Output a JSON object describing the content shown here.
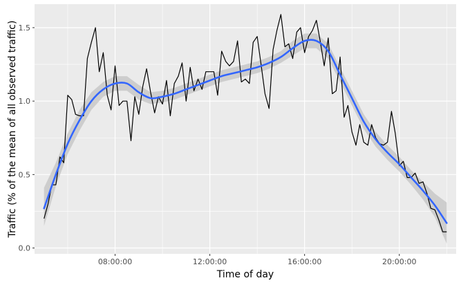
{
  "chart_data": {
    "type": "line",
    "title": "",
    "xlabel": "Time of day",
    "ylabel": "Traffic (% of the mean of all observed traffic)",
    "x_unit": "hour of day",
    "xlim": [
      4.6,
      22.4
    ],
    "ylim": [
      -0.04,
      1.66
    ],
    "x_ticks": [
      {
        "value": 8,
        "label": "08:00:00"
      },
      {
        "value": 12,
        "label": "12:00:00"
      },
      {
        "value": 16,
        "label": "16:00:00"
      },
      {
        "value": 20,
        "label": "20:00:00"
      }
    ],
    "y_ticks": [
      {
        "value": 0,
        "label": "0.0"
      },
      {
        "value": 0.5,
        "label": "0.5"
      },
      {
        "value": 1.0,
        "label": "1.0"
      },
      {
        "value": 1.5,
        "label": "1.5"
      }
    ],
    "grid": true,
    "legend": "none",
    "colors": {
      "panel": "#EBEBEB",
      "grid": "#FFFFFF",
      "observed": "#000000",
      "smooth": "#3366FF",
      "ribbon": "#C8C8C8"
    },
    "observed": {
      "x": [
        5.0,
        5.17,
        5.33,
        5.5,
        5.67,
        5.83,
        6.0,
        6.17,
        6.33,
        6.5,
        6.67,
        6.83,
        7.0,
        7.17,
        7.33,
        7.5,
        7.67,
        7.83,
        8.0,
        8.17,
        8.33,
        8.5,
        8.67,
        8.83,
        9.0,
        9.17,
        9.33,
        9.5,
        9.67,
        9.83,
        10.0,
        10.17,
        10.33,
        10.5,
        10.67,
        10.83,
        11.0,
        11.17,
        11.33,
        11.5,
        11.67,
        11.83,
        12.0,
        12.17,
        12.33,
        12.5,
        12.67,
        12.83,
        13.0,
        13.17,
        13.33,
        13.5,
        13.67,
        13.83,
        14.0,
        14.17,
        14.33,
        14.5,
        14.67,
        14.83,
        15.0,
        15.17,
        15.33,
        15.5,
        15.67,
        15.83,
        16.0,
        16.17,
        16.33,
        16.5,
        16.67,
        16.83,
        17.0,
        17.17,
        17.33,
        17.5,
        17.67,
        17.83,
        18.0,
        18.17,
        18.33,
        18.5,
        18.67,
        18.83,
        19.0,
        19.17,
        19.33,
        19.5,
        19.67,
        19.83,
        20.0,
        20.17,
        20.33,
        20.5,
        20.67,
        20.83,
        21.0,
        21.17,
        21.33,
        21.5,
        21.67,
        21.83,
        22.0
      ],
      "y": [
        0.2,
        0.3,
        0.43,
        0.43,
        0.62,
        0.58,
        1.04,
        1.01,
        0.91,
        0.9,
        0.9,
        1.29,
        1.4,
        1.5,
        1.2,
        1.33,
        1.04,
        0.94,
        1.24,
        0.97,
        1.0,
        1.0,
        0.73,
        1.03,
        0.91,
        1.1,
        1.22,
        1.06,
        0.92,
        1.03,
        0.98,
        1.14,
        0.9,
        1.12,
        1.17,
        1.26,
        1.0,
        1.23,
        1.07,
        1.15,
        1.08,
        1.2,
        1.2,
        1.2,
        1.04,
        1.34,
        1.27,
        1.24,
        1.27,
        1.41,
        1.13,
        1.15,
        1.12,
        1.4,
        1.44,
        1.24,
        1.05,
        0.95,
        1.35,
        1.48,
        1.59,
        1.37,
        1.39,
        1.29,
        1.47,
        1.5,
        1.33,
        1.44,
        1.48,
        1.55,
        1.4,
        1.24,
        1.43,
        1.05,
        1.07,
        1.3,
        0.89,
        0.97,
        0.79,
        0.7,
        0.84,
        0.72,
        0.7,
        0.84,
        0.75,
        0.71,
        0.7,
        0.72,
        0.93,
        0.78,
        0.56,
        0.59,
        0.48,
        0.48,
        0.51,
        0.44,
        0.45,
        0.37,
        0.27,
        0.26,
        0.19,
        0.11,
        0.11
      ]
    },
    "smooth": {
      "x": [
        5.0,
        5.5,
        6.0,
        6.5,
        7.0,
        7.5,
        8.0,
        8.5,
        9.0,
        9.5,
        10.0,
        10.5,
        11.0,
        11.5,
        12.0,
        12.5,
        13.0,
        13.5,
        14.0,
        14.5,
        15.0,
        15.5,
        16.0,
        16.5,
        17.0,
        17.5,
        18.0,
        18.5,
        19.0,
        19.5,
        20.0,
        20.5,
        21.0,
        21.5,
        22.0
      ],
      "y": [
        0.27,
        0.5,
        0.71,
        0.87,
        1.0,
        1.08,
        1.12,
        1.12,
        1.06,
        1.02,
        1.03,
        1.05,
        1.08,
        1.11,
        1.14,
        1.17,
        1.19,
        1.21,
        1.23,
        1.26,
        1.3,
        1.36,
        1.41,
        1.41,
        1.34,
        1.18,
        1.02,
        0.86,
        0.74,
        0.65,
        0.57,
        0.48,
        0.39,
        0.29,
        0.17
      ],
      "ci_lower": [
        0.15,
        0.42,
        0.64,
        0.8,
        0.94,
        1.03,
        1.07,
        1.07,
        1.01,
        0.98,
        0.99,
        1.01,
        1.04,
        1.07,
        1.1,
        1.13,
        1.15,
        1.17,
        1.19,
        1.22,
        1.26,
        1.31,
        1.36,
        1.36,
        1.29,
        1.13,
        0.97,
        0.81,
        0.69,
        0.6,
        0.52,
        0.43,
        0.33,
        0.21,
        0.03
      ],
      "ci_upper": [
        0.41,
        0.58,
        0.78,
        0.94,
        1.06,
        1.13,
        1.17,
        1.17,
        1.11,
        1.06,
        1.07,
        1.09,
        1.12,
        1.15,
        1.18,
        1.21,
        1.23,
        1.25,
        1.27,
        1.3,
        1.34,
        1.41,
        1.46,
        1.46,
        1.39,
        1.23,
        1.07,
        0.91,
        0.79,
        0.7,
        0.62,
        0.53,
        0.45,
        0.37,
        0.31
      ]
    }
  }
}
